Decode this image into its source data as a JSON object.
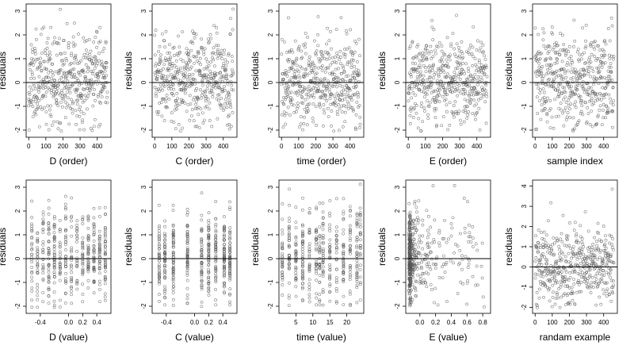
{
  "chart_data": [
    {
      "type": "scatter",
      "title": "",
      "xlabel": "D (order)",
      "ylabel": "residuals",
      "xlim": [
        -15,
        480
      ],
      "ylim": [
        -2.3,
        3.3
      ],
      "xticks": [
        0,
        100,
        200,
        300,
        400
      ],
      "xtick_labels": [
        "0",
        "100",
        "200",
        "300",
        "400"
      ],
      "yticks": [
        -2,
        -1,
        0,
        1,
        2,
        3
      ],
      "ytick_labels": [
        "-2",
        "-1",
        "0",
        "1",
        "2",
        "3"
      ],
      "hline": 0,
      "points_note": "about 460 points, index 0–460, residuals between -2 and 3.2",
      "x_mode": "index",
      "n": 460,
      "seed": 11
    },
    {
      "type": "scatter",
      "title": "",
      "xlabel": "C (order)",
      "ylabel": "residuals",
      "xlim": [
        -15,
        480
      ],
      "ylim": [
        -2.3,
        3.3
      ],
      "xticks": [
        0,
        100,
        200,
        300,
        400
      ],
      "xtick_labels": [
        "0",
        "100",
        "200",
        "300",
        "400"
      ],
      "yticks": [
        -2,
        -1,
        0,
        1,
        2,
        3
      ],
      "ytick_labels": [
        "-2",
        "-1",
        "0",
        "1",
        "2",
        "3"
      ],
      "hline": 0,
      "x_mode": "index",
      "n": 460,
      "seed": 23
    },
    {
      "type": "scatter",
      "title": "",
      "xlabel": "time (order)",
      "ylabel": "residuals",
      "xlim": [
        -15,
        480
      ],
      "ylim": [
        -2.3,
        3.3
      ],
      "xticks": [
        0,
        100,
        200,
        300,
        400
      ],
      "xtick_labels": [
        "0",
        "100",
        "200",
        "300",
        "400"
      ],
      "yticks": [
        -2,
        -1,
        0,
        1,
        2,
        3
      ],
      "ytick_labels": [
        "-2",
        "-1",
        "0",
        "1",
        "2",
        "3"
      ],
      "hline": 0,
      "x_mode": "index",
      "n": 460,
      "seed": 37
    },
    {
      "type": "scatter",
      "title": "",
      "xlabel": "E (order)",
      "ylabel": "residuals",
      "xlim": [
        -15,
        480
      ],
      "ylim": [
        -2.3,
        3.3
      ],
      "xticks": [
        0,
        100,
        200,
        300,
        400
      ],
      "xtick_labels": [
        "0",
        "100",
        "200",
        "300",
        "400"
      ],
      "yticks": [
        -2,
        -1,
        0,
        1,
        2,
        3
      ],
      "ytick_labels": [
        "-2",
        "-1",
        "0",
        "1",
        "2",
        "3"
      ],
      "hline": 0,
      "x_mode": "index",
      "n": 460,
      "seed": 41
    },
    {
      "type": "scatter",
      "title": "",
      "xlabel": "sample index",
      "ylabel": "residuals",
      "xlim": [
        -15,
        480
      ],
      "ylim": [
        -2.3,
        3.3
      ],
      "xticks": [
        0,
        100,
        200,
        300,
        400
      ],
      "xtick_labels": [
        "0",
        "100",
        "200",
        "300",
        "400"
      ],
      "yticks": [
        -2,
        -1,
        0,
        1,
        2,
        3
      ],
      "ytick_labels": [
        "-2",
        "-1",
        "0",
        "1",
        "2",
        "3"
      ],
      "hline": 0,
      "x_mode": "index",
      "n": 460,
      "seed": 53
    },
    {
      "type": "scatter",
      "title": "",
      "xlabel": "D (value)",
      "ylabel": "residuals",
      "xlim": [
        -0.6,
        0.6
      ],
      "ylim": [
        -2.3,
        3.3
      ],
      "xticks": [
        -0.4,
        0.0,
        0.2,
        0.4
      ],
      "xtick_labels": [
        "-0.4",
        "0.0",
        "0.2",
        "0.4"
      ],
      "yticks": [
        -2,
        -1,
        0,
        1,
        2,
        3
      ],
      "ytick_labels": [
        "-2",
        "-1",
        "0",
        "1",
        "2",
        "3"
      ],
      "hline": 0,
      "x_mode": "values",
      "x_values": [
        -0.52,
        -0.44,
        -0.36,
        -0.28,
        -0.2,
        -0.12,
        -0.04,
        0.04,
        0.12,
        0.2,
        0.28,
        0.36,
        0.44,
        0.52
      ],
      "n": 460,
      "seed": 61
    },
    {
      "type": "scatter",
      "title": "",
      "xlabel": "C (value)",
      "ylabel": "residuals",
      "xlim": [
        -0.6,
        0.6
      ],
      "ylim": [
        -2.3,
        3.3
      ],
      "xticks": [
        -0.4,
        0.0,
        0.2,
        0.4
      ],
      "xtick_labels": [
        "-0.4",
        "0.0",
        "0.2",
        "0.4"
      ],
      "yticks": [
        -2,
        -1,
        0,
        1,
        2,
        3
      ],
      "ytick_labels": [
        "-2",
        "-1",
        "0",
        "1",
        "2",
        "3"
      ],
      "hline": 0,
      "x_mode": "values",
      "x_values": [
        -0.5,
        -0.42,
        -0.3,
        -0.1,
        0.1,
        0.2,
        0.3,
        0.42,
        0.5
      ],
      "n": 460,
      "seed": 73
    },
    {
      "type": "scatter",
      "title": "",
      "xlabel": "time (value)",
      "ylabel": "residuals",
      "xlim": [
        0,
        25
      ],
      "ylim": [
        -2.3,
        3.3
      ],
      "xticks": [
        5,
        10,
        15,
        20
      ],
      "xtick_labels": [
        "5",
        "10",
        "15",
        "20"
      ],
      "yticks": [
        -2,
        -1,
        0,
        1,
        2,
        3
      ],
      "ytick_labels": [
        "-2",
        "-1",
        "0",
        "1",
        "2",
        "3"
      ],
      "hline": 0,
      "x_mode": "values",
      "x_values": [
        1,
        3,
        5,
        7,
        9,
        11,
        12,
        13,
        15,
        17,
        19,
        21,
        23,
        24
      ],
      "n": 460,
      "seed": 89
    },
    {
      "type": "scatter",
      "title": "",
      "xlabel": "E (value)",
      "ylabel": "residuals",
      "xlim": [
        -0.18,
        0.9
      ],
      "ylim": [
        -2.3,
        3.3
      ],
      "xticks": [
        0.0,
        0.2,
        0.4,
        0.6,
        0.8
      ],
      "xtick_labels": [
        "0.0",
        "0.2",
        "0.4",
        "0.6",
        "0.8"
      ],
      "yticks": [
        -2,
        -1,
        0,
        1,
        2,
        3
      ],
      "ytick_labels": [
        "-2",
        "-1",
        "0",
        "1",
        "2",
        "3"
      ],
      "hline": 0,
      "x_mode": "skewed",
      "n": 460,
      "seed": 97
    },
    {
      "type": "scatter",
      "title": "",
      "xlabel": "randam example",
      "ylabel": "residuals",
      "xlim": [
        -15,
        480
      ],
      "ylim": [
        -2.3,
        4.3
      ],
      "xticks": [
        0,
        100,
        200,
        300,
        400
      ],
      "xtick_labels": [
        "0",
        "100",
        "200",
        "300",
        "400"
      ],
      "yticks": [
        -2,
        -1,
        0,
        1,
        2,
        3,
        4
      ],
      "ytick_labels": [
        "-2",
        "-1",
        "0",
        "1",
        "2",
        "3",
        "4"
      ],
      "hline": 0,
      "x_mode": "index",
      "n": 460,
      "seed": 101
    }
  ]
}
